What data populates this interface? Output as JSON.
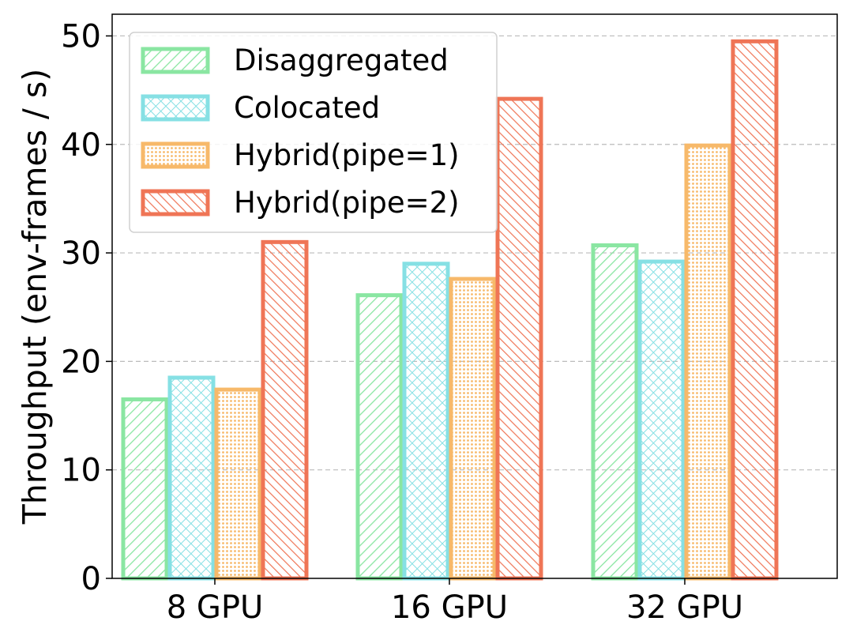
{
  "chart_data": {
    "type": "bar",
    "title": "",
    "xlabel": "",
    "ylabel": "Throughput (env-frames / s)",
    "ylim": [
      0,
      52
    ],
    "yticks": [
      0,
      10,
      20,
      30,
      40,
      50
    ],
    "grid": "horizontal-dashed",
    "legend_position": "top-left",
    "categories": [
      "8 GPU",
      "16 GPU",
      "32 GPU"
    ],
    "series": [
      {
        "name": "Disaggregated",
        "values": [
          16.5,
          26.1,
          30.7
        ],
        "color": "#8ae6a2",
        "pattern": "diag-right"
      },
      {
        "name": "Colocated",
        "values": [
          18.5,
          29.0,
          29.2
        ],
        "color": "#86e0e4",
        "pattern": "crosshatch"
      },
      {
        "name": "Hybrid(pipe=1)",
        "values": [
          17.4,
          27.6,
          39.9
        ],
        "color": "#f7b96a",
        "pattern": "dots"
      },
      {
        "name": "Hybrid(pipe=2)",
        "values": [
          31.0,
          44.2,
          49.5
        ],
        "color": "#ef7556",
        "pattern": "diag-left"
      }
    ]
  }
}
